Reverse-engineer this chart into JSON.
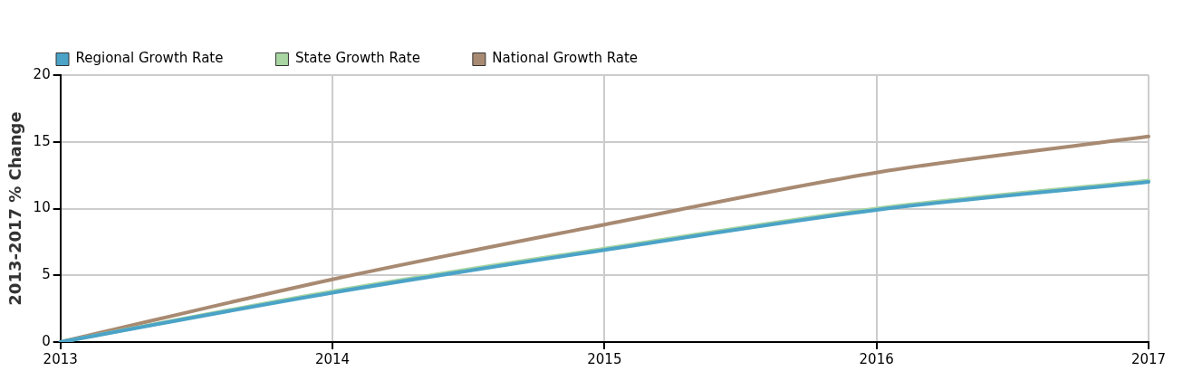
{
  "chart_data": {
    "type": "line",
    "ylabel": "2013-2017 % Change",
    "categories": [
      "2013",
      "2014",
      "2015",
      "2016",
      "2017"
    ],
    "series": [
      {
        "name": "Regional Growth Rate",
        "color": "#4ba3c7",
        "values": [
          0,
          3.7,
          6.9,
          9.9,
          12.0
        ]
      },
      {
        "name": "State Growth Rate",
        "color": "#a8d5a2",
        "values": [
          0,
          3.8,
          7.0,
          10.0,
          12.1
        ]
      },
      {
        "name": "National Growth Rate",
        "color": "#a88a72",
        "values": [
          0,
          4.7,
          8.8,
          12.7,
          15.4
        ]
      }
    ],
    "ylim": [
      0,
      20
    ],
    "yticks": [
      0,
      5,
      10,
      15,
      20
    ],
    "grid": true,
    "legend": "top left",
    "marker": "none",
    "line_style": "solid"
  }
}
